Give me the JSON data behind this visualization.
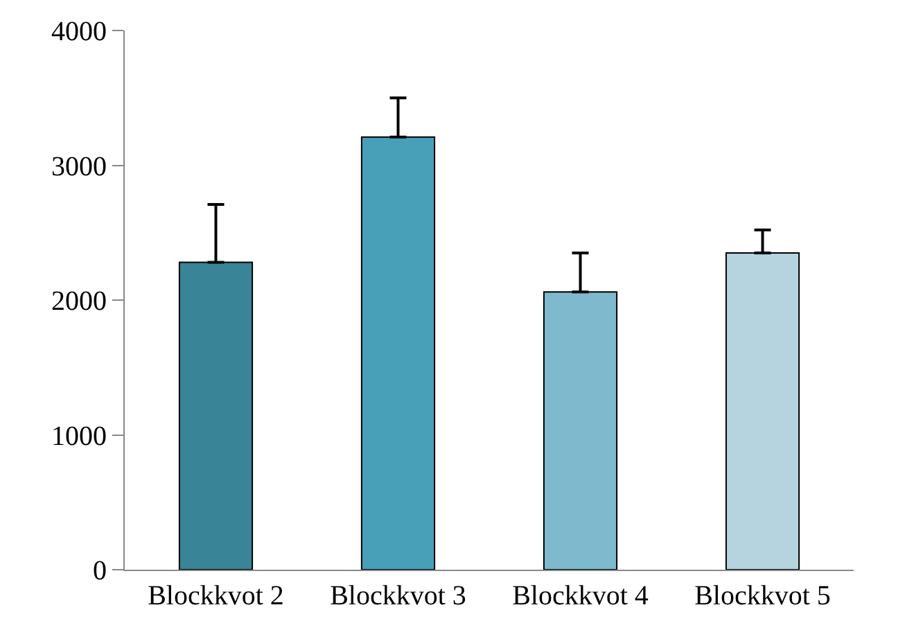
{
  "chart_data": {
    "type": "bar",
    "categories": [
      "Blockkvot 2",
      "Blockkvot 3",
      "Blockkvot 4",
      "Blockkvot 5"
    ],
    "values": [
      2280,
      3210,
      2060,
      2350
    ],
    "colors": [
      "#3a8497",
      "#48a0b8",
      "#7fb9ce",
      "#b5d4df"
    ],
    "errors": [
      [
        2280,
        2710
      ],
      [
        3210,
        3500
      ],
      [
        2060,
        2350
      ],
      [
        2350,
        2520
      ]
    ],
    "ylim": [
      0,
      4000
    ],
    "yticks": [
      0,
      1000,
      2000,
      3000,
      4000
    ]
  }
}
